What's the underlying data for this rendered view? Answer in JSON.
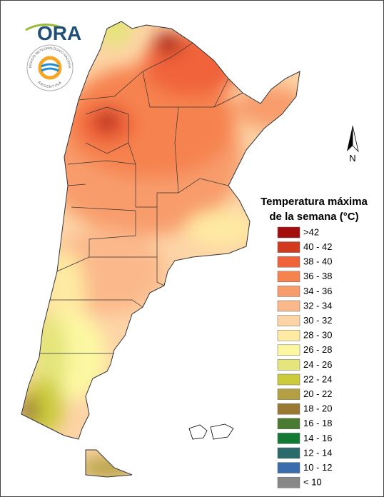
{
  "logo": {
    "text": "ORA",
    "seal_top": "SERVICIO METEOROLÓGICO NACIONAL",
    "seal_bottom": "ARGENTINA"
  },
  "north_label": "N",
  "legend": {
    "title": [
      "Temperatura máxima",
      "de la semana (°C)"
    ],
    "items": [
      {
        "label": ">42",
        "color": "#a30d0d"
      },
      {
        "label": "40 - 42",
        "color": "#d2391d"
      },
      {
        "label": "38 - 40",
        "color": "#f0633a"
      },
      {
        "label": "36 - 38",
        "color": "#f6834f"
      },
      {
        "label": "34 - 36",
        "color": "#f89c6c"
      },
      {
        "label": "32 - 34",
        "color": "#fbb98b"
      },
      {
        "label": "30 - 32",
        "color": "#fdd4a6"
      },
      {
        "label": "28 - 30",
        "color": "#feeaa2"
      },
      {
        "label": "26 - 28",
        "color": "#fcf8a2"
      },
      {
        "label": "24 - 26",
        "color": "#e4e57a"
      },
      {
        "label": "22 - 24",
        "color": "#cccb3c"
      },
      {
        "label": "20 - 22",
        "color": "#b2a042"
      },
      {
        "label": "18 - 20",
        "color": "#9a7a32"
      },
      {
        "label": "16 - 18",
        "color": "#4b7a32"
      },
      {
        "label": "14 - 16",
        "color": "#127a32"
      },
      {
        "label": "12 - 14",
        "color": "#2b6a6a"
      },
      {
        "label": "10 - 12",
        "color": "#3b6cab"
      },
      {
        "label": "< 10",
        "color": "#888888"
      }
    ]
  }
}
